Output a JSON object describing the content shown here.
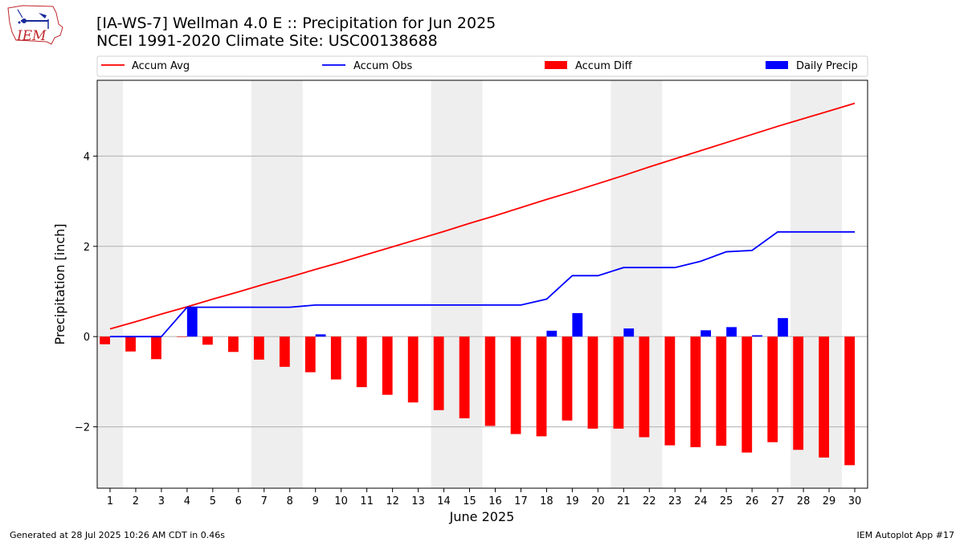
{
  "header": {
    "title_line1": "[IA-WS-7] Wellman 4.0 E :: Precipitation for Jun 2025",
    "title_line2": "NCEI 1991-2020 Climate Site: USC00138688",
    "logo_text": "IEM"
  },
  "footer": {
    "left": "Generated at 28 Jul 2025 10:26 AM CDT in 0.46s",
    "right": "IEM Autoplot App #17"
  },
  "colors": {
    "accum_avg": "#ff0000",
    "accum_obs": "#0000ff",
    "accum_diff": "#ff0000",
    "daily_precip": "#0000ff",
    "weekend_shade": "#eeeeee",
    "grid": "#b0b0b0"
  },
  "chart_data": {
    "type": "bar",
    "xlabel": "June 2025",
    "ylabel": "Precipitation [inch]",
    "xlim": [
      0.5,
      30.5
    ],
    "ylim": [
      -3.36,
      5.68
    ],
    "yticks": [
      -2,
      0,
      2,
      4
    ],
    "ytick_labels": [
      "−2",
      "0",
      "2",
      "4"
    ],
    "grid": "horizontal",
    "legend_position": "top",
    "x": [
      1,
      2,
      3,
      4,
      5,
      6,
      7,
      8,
      9,
      10,
      11,
      12,
      13,
      14,
      15,
      16,
      17,
      18,
      19,
      20,
      21,
      22,
      23,
      24,
      25,
      26,
      27,
      28,
      29,
      30
    ],
    "weekend_spans": [
      [
        0.5,
        1.5
      ],
      [
        6.5,
        8.5
      ],
      [
        13.5,
        15.5
      ],
      [
        20.5,
        22.5
      ],
      [
        27.5,
        29.5
      ]
    ],
    "series": [
      {
        "name": "Accum Avg",
        "kind": "line",
        "values": [
          0.17,
          0.33,
          0.5,
          0.66,
          0.83,
          0.99,
          1.16,
          1.32,
          1.49,
          1.65,
          1.82,
          1.99,
          2.16,
          2.33,
          2.51,
          2.68,
          2.86,
          3.04,
          3.21,
          3.39,
          3.57,
          3.76,
          3.94,
          4.12,
          4.3,
          4.48,
          4.66,
          4.83,
          5.0,
          5.17
        ]
      },
      {
        "name": "Accum Obs",
        "kind": "line",
        "values": [
          0.0,
          0.0,
          0.0,
          0.65,
          0.65,
          0.65,
          0.65,
          0.65,
          0.7,
          0.7,
          0.7,
          0.7,
          0.7,
          0.7,
          0.7,
          0.7,
          0.7,
          0.83,
          1.35,
          1.35,
          1.53,
          1.53,
          1.53,
          1.67,
          1.88,
          1.91,
          2.32,
          2.32,
          2.32,
          2.32
        ]
      },
      {
        "name": "Accum Diff",
        "kind": "bar",
        "values": [
          -0.17,
          -0.33,
          -0.5,
          -0.01,
          -0.18,
          -0.34,
          -0.51,
          -0.67,
          -0.79,
          -0.95,
          -1.12,
          -1.29,
          -1.46,
          -1.63,
          -1.81,
          -1.98,
          -2.16,
          -2.21,
          -1.86,
          -2.04,
          -2.04,
          -2.23,
          -2.41,
          -2.45,
          -2.42,
          -2.57,
          -2.34,
          -2.51,
          -2.68,
          -2.85
        ]
      },
      {
        "name": "Daily Precip",
        "kind": "bar",
        "values": [
          0,
          0,
          0,
          0.65,
          0,
          0,
          0,
          0,
          0.05,
          0,
          0,
          0,
          0,
          0,
          0,
          0,
          0,
          0.13,
          0.52,
          0,
          0.18,
          0,
          0,
          0.14,
          0.21,
          0.03,
          0.41,
          0,
          0,
          0
        ]
      }
    ]
  }
}
